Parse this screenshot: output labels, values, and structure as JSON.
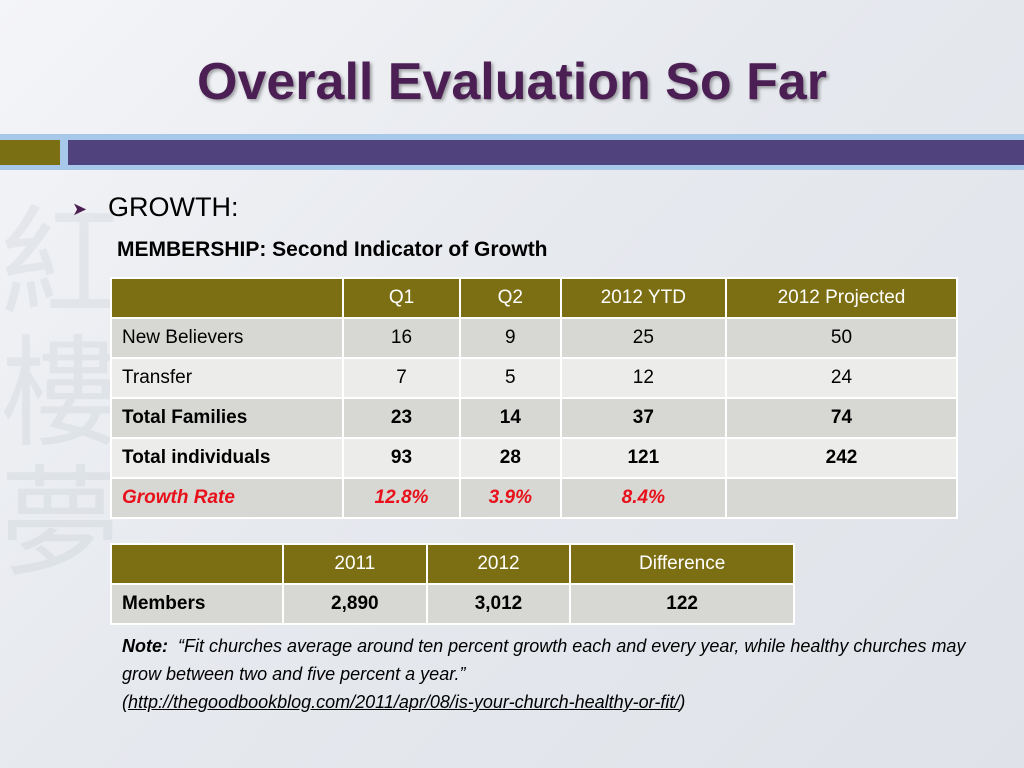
{
  "slide": {
    "title": "Overall Evaluation So Far",
    "bullet": "GROWTH:",
    "subheading": "MEMBERSHIP:  Second Indicator of Growth"
  },
  "icons": {
    "bullet": "chevron-right-icon"
  },
  "colors": {
    "header": "#7c6f13",
    "band_purple": "#4f427d",
    "band_olive": "#7b6f14",
    "title": "#4b1f54",
    "growth_rate": "#e8101a"
  },
  "table1": {
    "headers": [
      "",
      "Q1",
      "Q2",
      "2012 YTD",
      "2012 Projected"
    ],
    "rows": [
      [
        "New Believers",
        "16",
        "9",
        "25",
        "50"
      ],
      [
        "Transfer",
        "7",
        "5",
        "12",
        "24"
      ],
      [
        "Total Families",
        "23",
        "14",
        "37",
        "74"
      ],
      [
        "Total individuals",
        "93",
        "28",
        "121",
        "242"
      ],
      [
        "Growth Rate",
        "12.8%",
        "3.9%",
        "8.4%",
        ""
      ]
    ]
  },
  "table2": {
    "headers": [
      "",
      "2011",
      "2012",
      "Difference"
    ],
    "rows": [
      [
        "Members",
        "2,890",
        "3,012",
        "122"
      ]
    ]
  },
  "note": {
    "label": "Note:",
    "quote": "“Fit churches average around ten percent growth each and every year, while healthy churches may grow between two and five percent a year.”",
    "open_paren": "(",
    "link": "http://thegoodbookblog.com/2011/apr/08/is-your-church-healthy-or-fit/",
    "close_paren": ")"
  }
}
